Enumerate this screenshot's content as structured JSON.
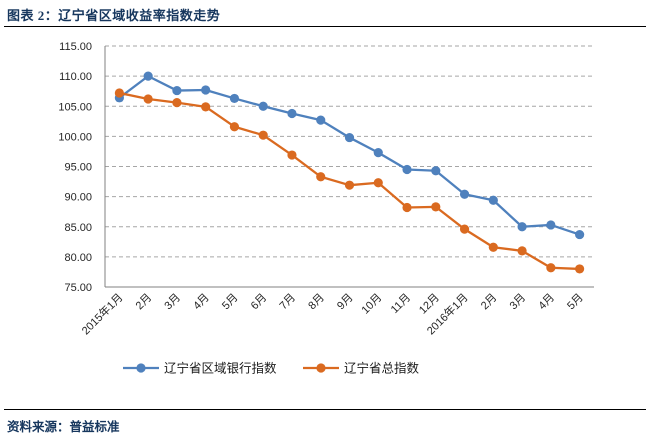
{
  "header": {
    "title": "图表 2：辽宁省区域收益率指数走势"
  },
  "footer": {
    "source": "资料来源：普益标准"
  },
  "chart_data": {
    "type": "line",
    "title": "",
    "xlabel": "",
    "ylabel": "",
    "categories": [
      "2015年1月",
      "2月",
      "3月",
      "4月",
      "5月",
      "6月",
      "7月",
      "8月",
      "9月",
      "10月",
      "11月",
      "12月",
      "2016年1月",
      "2月",
      "3月",
      "4月",
      "5月"
    ],
    "series": [
      {
        "name": "辽宁省区域银行指数",
        "color": "#4F81BD",
        "values": [
          106.4,
          110.0,
          107.6,
          107.7,
          106.3,
          105.0,
          103.8,
          102.7,
          99.8,
          97.3,
          94.5,
          94.3,
          90.4,
          89.4,
          85.0,
          85.3,
          83.7
        ]
      },
      {
        "name": "辽宁省总指数",
        "color": "#DA6A20",
        "values": [
          107.2,
          106.2,
          105.6,
          104.9,
          101.6,
          100.2,
          96.9,
          93.3,
          91.9,
          92.3,
          88.2,
          88.3,
          84.6,
          81.6,
          81.0,
          78.2,
          78.0
        ]
      }
    ],
    "ylim": [
      75,
      115
    ],
    "ytick_step": 5,
    "ytick_labels": [
      "115.00",
      "110.00",
      "105.00",
      "100.00",
      "95.00",
      "90.00",
      "85.00",
      "80.00",
      "75.00"
    ],
    "grid": "horizontal-dashed",
    "legend_position": "bottom",
    "gridline_color": "#A6A6A6",
    "axis_color": "#808080"
  }
}
